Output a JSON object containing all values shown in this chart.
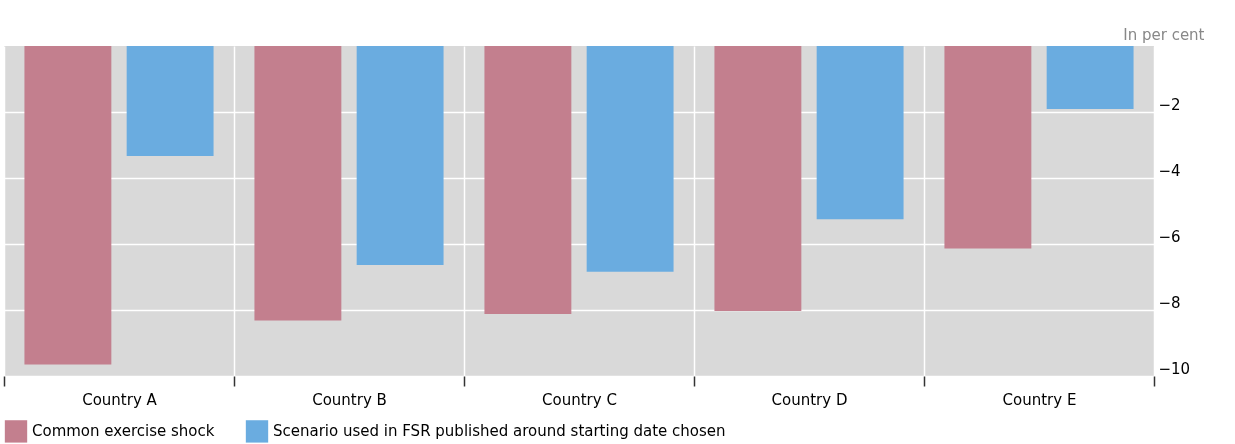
{
  "chart_data": {
    "type": "bar",
    "ylabel": "In per cent",
    "categories": [
      "Country A",
      "Country B",
      "Country C",
      "Country D",
      "Country E"
    ],
    "series": [
      {
        "name": "Common exercise shock",
        "color": "#c37f8e",
        "values": [
          -9.65,
          -8.32,
          -8.12,
          -8.03,
          -6.14
        ]
      },
      {
        "name": "Scenario used in FSR published around starting date chosen",
        "color": "#6aace0",
        "values": [
          -3.33,
          -6.64,
          -6.84,
          -5.25,
          -1.91
        ]
      }
    ],
    "ylim": [
      -10,
      0
    ],
    "yticks": [
      {
        "value": -2,
        "label": "−2"
      },
      {
        "value": -4,
        "label": "−4"
      },
      {
        "value": -6,
        "label": "−6"
      },
      {
        "value": -8,
        "label": "−8"
      },
      {
        "value": -10,
        "label": "−10"
      }
    ],
    "grid": true,
    "legend": "bottom left"
  }
}
